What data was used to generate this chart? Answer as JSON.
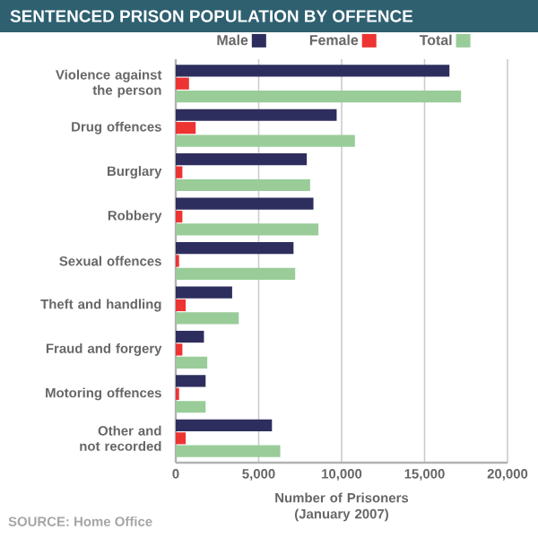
{
  "chart_data": {
    "type": "bar",
    "orientation": "horizontal",
    "title": "SENTENCED PRISON POPULATION BY OFFENCE",
    "xlabel": "Number of Prisoners (January 2007)",
    "categories": [
      "Violence against the person",
      "Drug offences",
      "Burglary",
      "Robbery",
      "Sexual offences",
      "Theft and handling",
      "Fraud and forgery",
      "Motoring offences",
      "Other and not recorded"
    ],
    "series": [
      {
        "name": "Male",
        "color": "#2e2e5e",
        "values": [
          16500,
          9700,
          7900,
          8300,
          7100,
          3400,
          1700,
          1800,
          5800
        ]
      },
      {
        "name": "Female",
        "color": "#ee3333",
        "values": [
          800,
          1200,
          400,
          400,
          200,
          600,
          400,
          200,
          600
        ]
      },
      {
        "name": "Total",
        "color": "#99cc99",
        "values": [
          17200,
          10800,
          8100,
          8600,
          7200,
          3800,
          1900,
          1800,
          6300
        ]
      }
    ],
    "xlim": [
      0,
      20000
    ],
    "xticks": [
      0,
      {
        "value": 5000,
        "label": "5,000"
      },
      {
        "value": 10000,
        "label": "10,000"
      },
      {
        "value": 15000,
        "label": "15,000"
      },
      {
        "value": 20000,
        "label": "20,000"
      }
    ],
    "grid": "x",
    "legend": "top",
    "annotations": [
      "SOURCE: Home Office"
    ]
  }
}
